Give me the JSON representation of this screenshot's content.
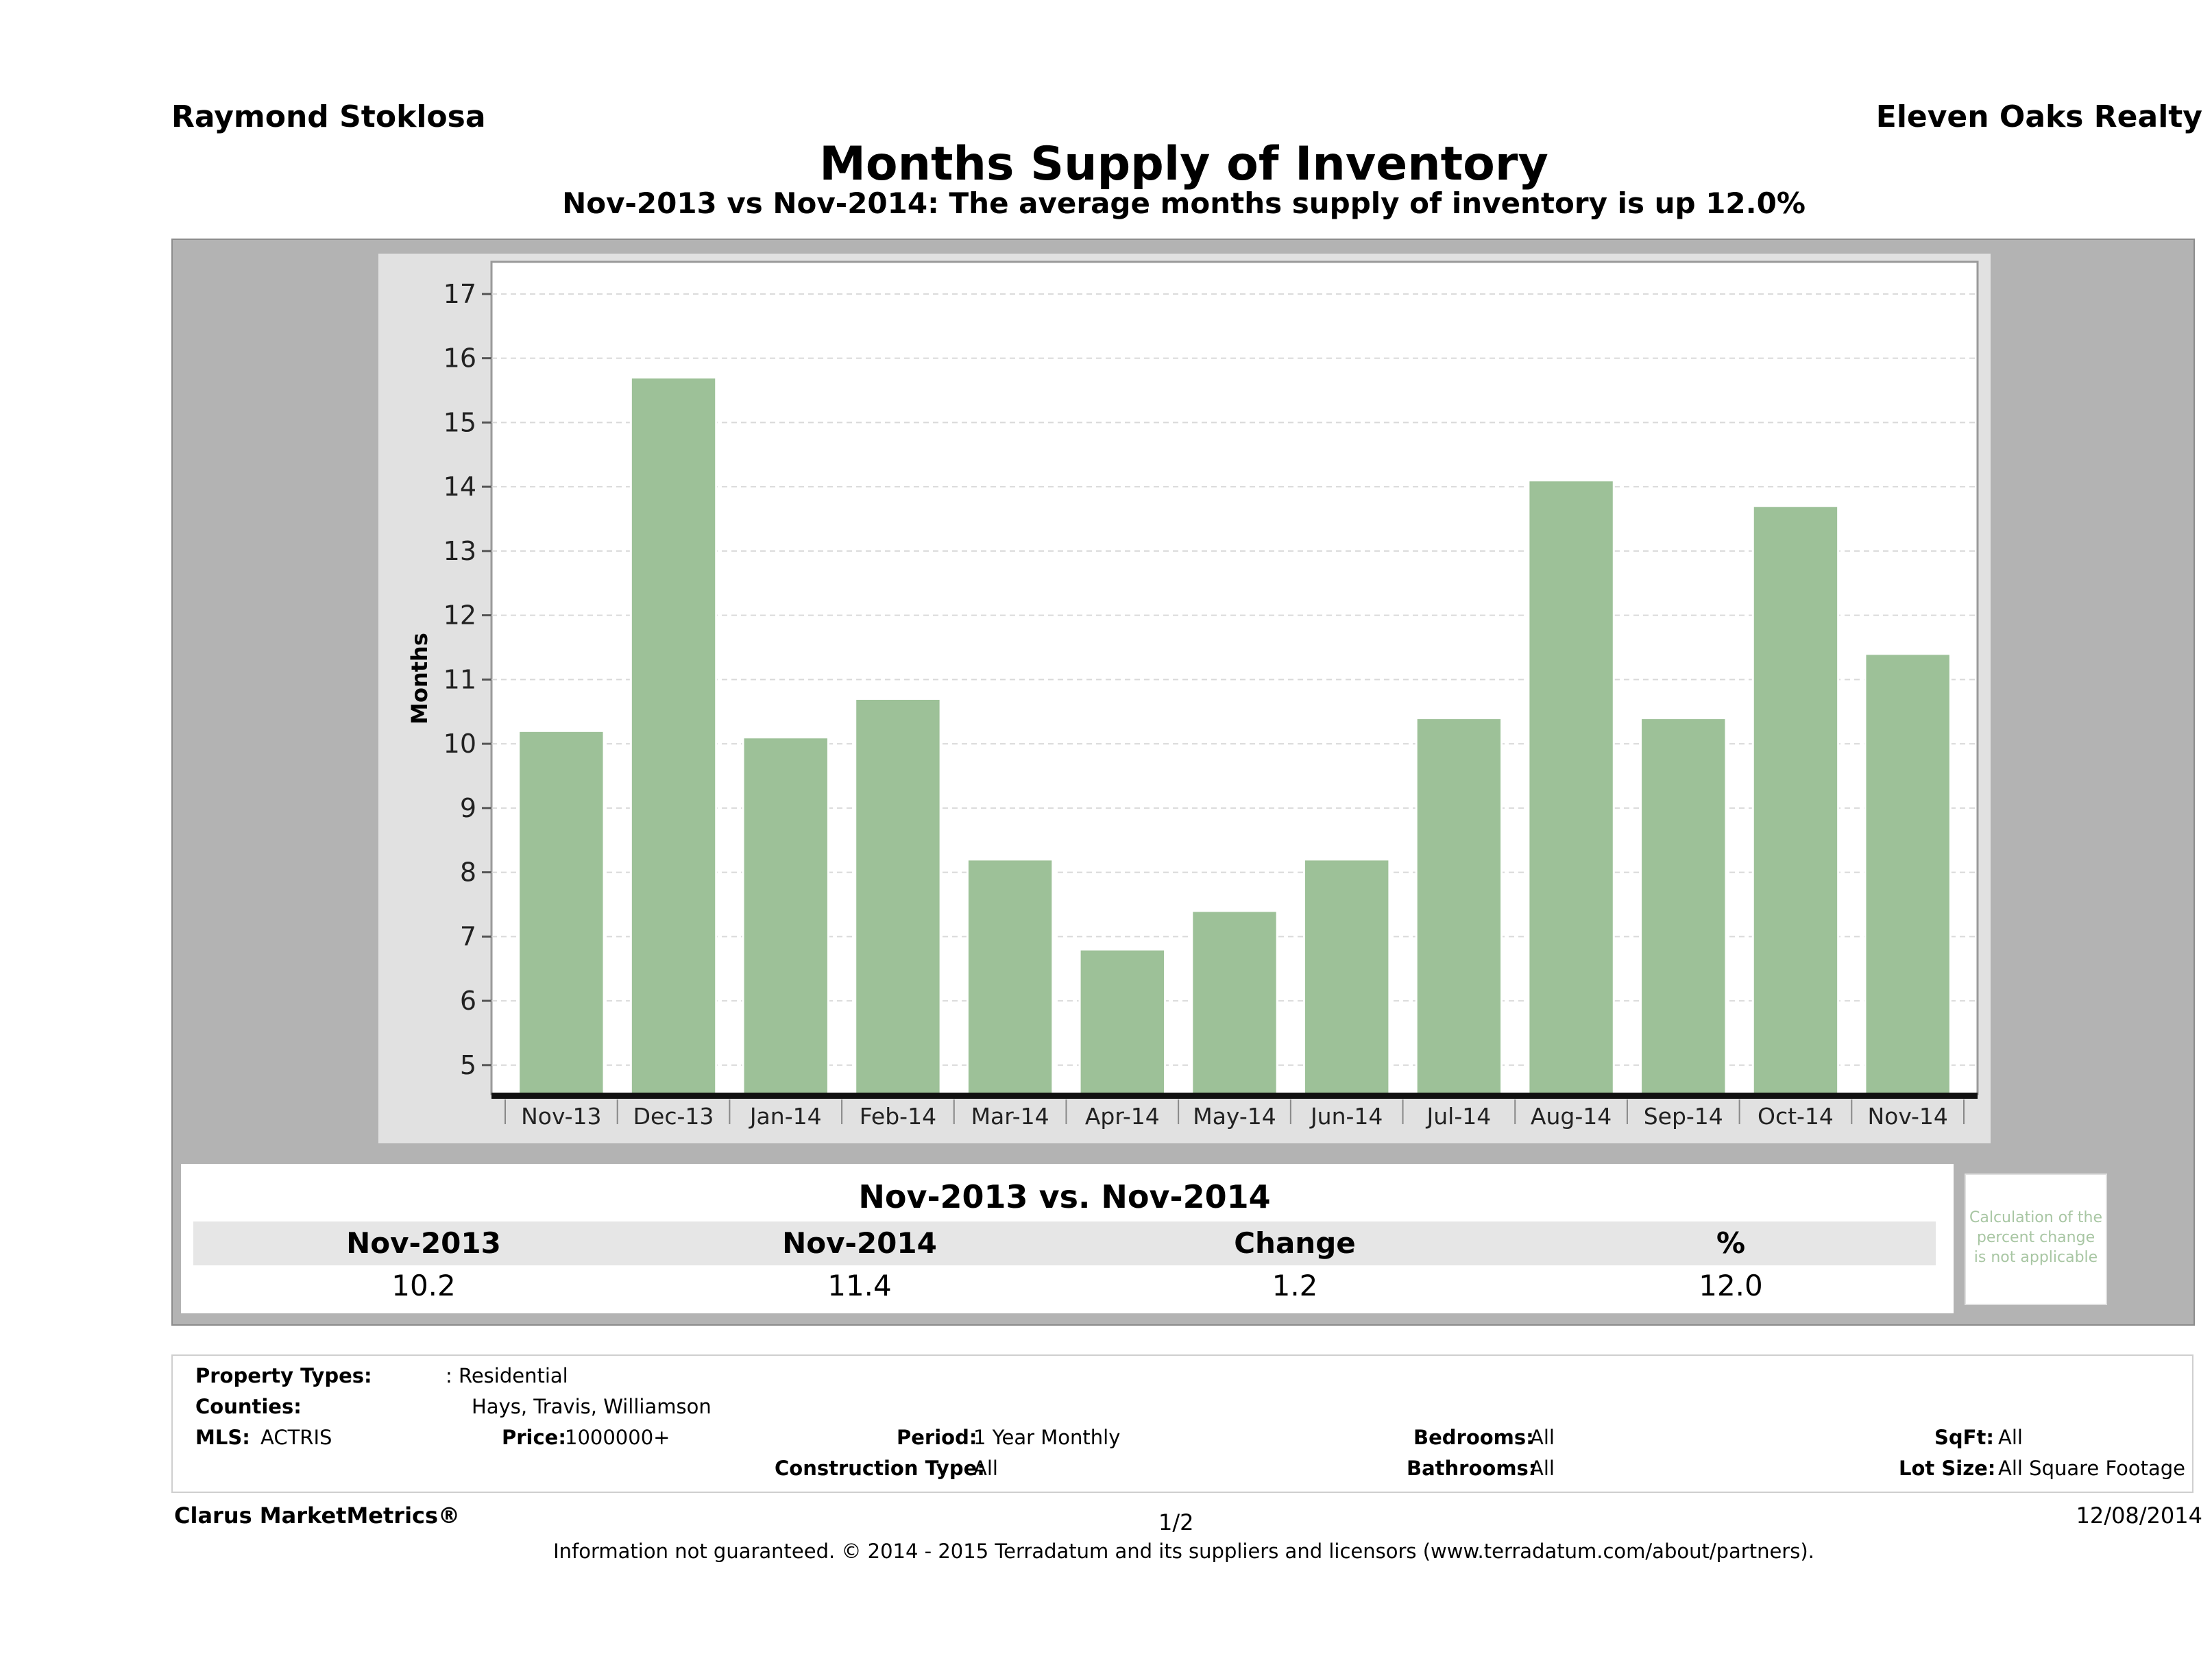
{
  "header": {
    "agent": "Raymond Stoklosa",
    "company": "Eleven Oaks Realty"
  },
  "chart_data": {
    "type": "bar",
    "title": "Months Supply of Inventory",
    "subtitle": "Nov-2013 vs Nov-2014: The average months supply of inventory is up 12.0%",
    "ylabel": "Months",
    "xlabel": "",
    "categories": [
      "Nov-13",
      "Dec-13",
      "Jan-14",
      "Feb-14",
      "Mar-14",
      "Apr-14",
      "May-14",
      "Jun-14",
      "Jul-14",
      "Aug-14",
      "Sep-14",
      "Oct-14",
      "Nov-14"
    ],
    "values": [
      10.2,
      15.7,
      10.1,
      10.7,
      8.2,
      6.8,
      7.4,
      8.2,
      10.4,
      14.1,
      10.4,
      13.7,
      11.4
    ],
    "yticks": [
      5,
      6,
      7,
      8,
      9,
      10,
      11,
      12,
      13,
      14,
      15,
      16,
      17
    ],
    "ylim": [
      4.55,
      17.5
    ],
    "grid": true,
    "colors": {
      "bar": "#9dc198",
      "bar_edge": "#ffffff",
      "plot_bg": "#ffffff",
      "grid": "#d9d9d9"
    }
  },
  "summary": {
    "title": "Nov-2013 vs. Nov-2014",
    "headers": [
      "Nov-2013",
      "Nov-2014",
      "Change",
      "%"
    ],
    "values": [
      "10.2",
      "11.4",
      "1.2",
      "12.0"
    ],
    "note_lines": [
      "Calculation of the",
      "percent change",
      "is not applicable"
    ]
  },
  "criteria": {
    "property_types_label": "Property Types:",
    "property_types_value": ": Residential",
    "counties_label": "Counties:",
    "counties_value": "Hays, Travis, Williamson",
    "mls_label": "MLS:",
    "mls_value": "ACTRIS",
    "price_label": "Price:",
    "price_value": "1000000+",
    "period_label": "Period:",
    "period_value": "1 Year Monthly",
    "construction_label": "Construction Type:",
    "construction_value": "All",
    "bedrooms_label": "Bedrooms:",
    "bedrooms_value": "All",
    "bathrooms_label": "Bathrooms:",
    "bathrooms_value": "All",
    "sqft_label": "SqFt:",
    "sqft_value": "All",
    "lot_label": "Lot Size:",
    "lot_value": "All Square Footage"
  },
  "footer": {
    "brand": "Clarus MarketMetrics®",
    "page": "1/2",
    "date": "12/08/2014",
    "disclaimer": "Information not guaranteed. © 2014 - 2015 Terradatum and its suppliers and licensors (www.terradatum.com/about/partners)."
  }
}
